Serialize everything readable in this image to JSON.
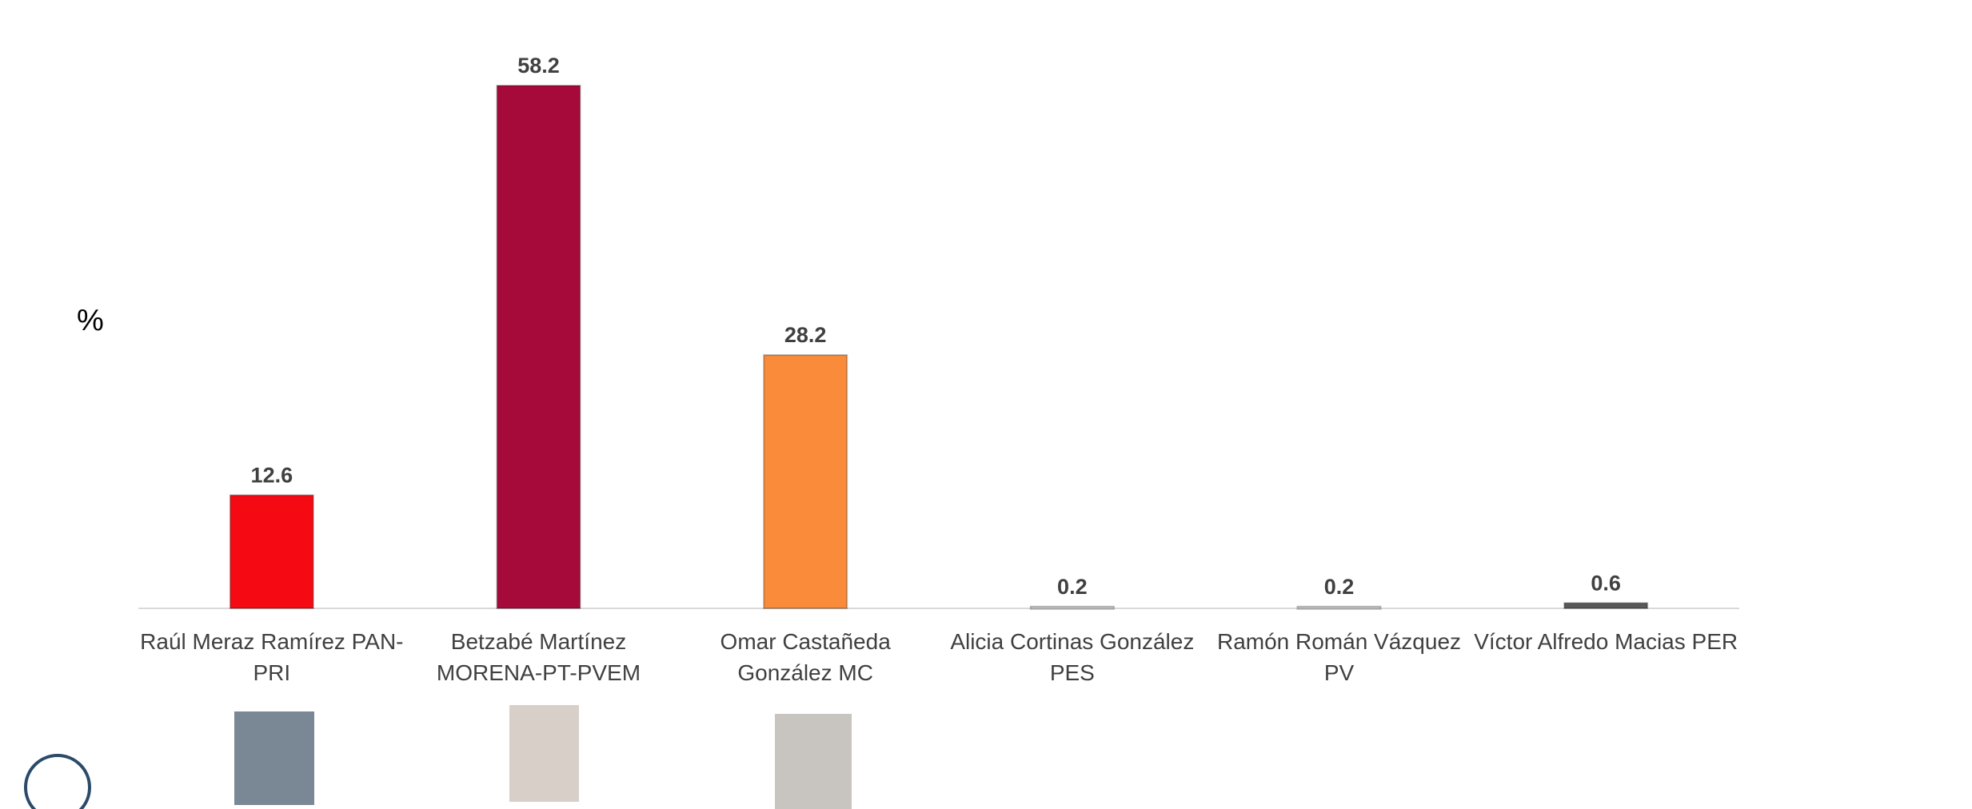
{
  "chart_data": {
    "type": "bar",
    "y_label": "%",
    "categories": [
      "Raúl Meraz Ramírez PAN-PRI",
      "Betzabé Martínez MORENA-PT-PVEM",
      "Omar Castañeda González  MC",
      "Alicia Cortinas González PES",
      "Ramón Román Vázquez PV",
      "Víctor Alfredo Macias PER"
    ],
    "values": [
      12.6,
      58.2,
      28.2,
      0.2,
      0.2,
      0.6
    ],
    "colors": [
      "#f50a14",
      "#a50a3a",
      "#f98b3a",
      "#d0d0d0",
      "#d0d0d0",
      "#595959"
    ]
  }
}
